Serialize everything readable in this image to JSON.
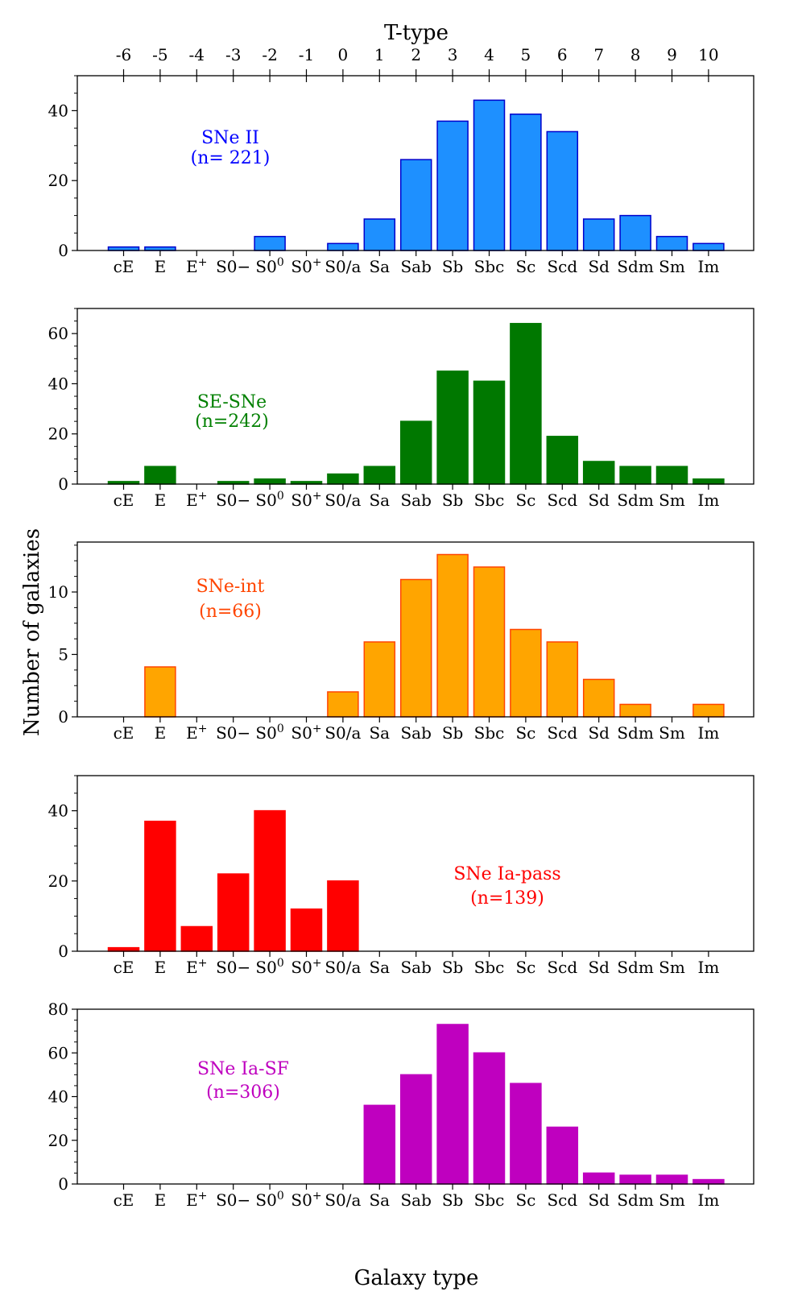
{
  "figure": {
    "top_axis_label": "T-type",
    "bottom_axis_label": "Galaxy type",
    "y_axis_label": "Number of galaxies"
  },
  "chart_data": [
    {
      "type": "bar",
      "title": "",
      "label_line1": "SNe II",
      "label_line2": "(n= 221)",
      "color": "#1e90ff",
      "edge_color": "#0000cc",
      "text_color": "#0000ff",
      "categories": [
        "cE",
        "E",
        "E+",
        "S0−",
        "S00",
        "S0+",
        "S0/a",
        "Sa",
        "Sab",
        "Sb",
        "Sbc",
        "Sc",
        "Scd",
        "Sd",
        "Sdm",
        "Sm",
        "Im"
      ],
      "values": [
        1,
        1,
        0,
        0,
        4,
        0,
        2,
        9,
        26,
        37,
        43,
        39,
        34,
        9,
        10,
        4,
        2
      ],
      "ylim": [
        0,
        50
      ],
      "yticks": [
        0,
        20,
        40
      ],
      "top_ticks": [
        "-6",
        "-5",
        "-4",
        "-3",
        "-2",
        "-1",
        "0",
        "1",
        "2",
        "3",
        "4",
        "5",
        "6",
        "7",
        "8",
        "9",
        "10"
      ],
      "grid": false
    },
    {
      "type": "bar",
      "title": "",
      "label_line1": "SE-SNe",
      "label_line2": "(n=242)",
      "color": "#007800",
      "edge_color": "#007800",
      "text_color": "#008000",
      "categories": [
        "cE",
        "E",
        "E+",
        "S0−",
        "S00",
        "S0+",
        "S0/a",
        "Sa",
        "Sab",
        "Sb",
        "Sbc",
        "Sc",
        "Scd",
        "Sd",
        "Sdm",
        "Sm",
        "Im"
      ],
      "values": [
        1,
        7,
        0,
        1,
        2,
        1,
        4,
        7,
        25,
        45,
        41,
        64,
        19,
        9,
        7,
        7,
        2
      ],
      "ylim": [
        0,
        70
      ],
      "yticks": [
        0,
        20,
        40,
        60
      ],
      "grid": false
    },
    {
      "type": "bar",
      "title": "",
      "label_line1": "SNe-int",
      "label_line2": "(n=66)",
      "color": "#ffa500",
      "edge_color": "#ff4500",
      "text_color": "#ff4500",
      "categories": [
        "cE",
        "E",
        "E+",
        "S0−",
        "S00",
        "S0+",
        "S0/a",
        "Sa",
        "Sab",
        "Sb",
        "Sbc",
        "Sc",
        "Scd",
        "Sd",
        "Sdm",
        "Sm",
        "Im"
      ],
      "values": [
        0,
        4,
        0,
        0,
        0,
        0,
        2,
        6,
        11,
        13,
        12,
        7,
        6,
        3,
        1,
        0,
        1
      ],
      "ylim": [
        0,
        14
      ],
      "yticks": [
        0,
        5,
        10
      ],
      "grid": false
    },
    {
      "type": "bar",
      "title": "",
      "label_line1": "SNe Ia-pass",
      "label_line2": "(n=139)",
      "color": "#ff0000",
      "edge_color": "#ff0000",
      "text_color": "#ff0000",
      "categories": [
        "cE",
        "E",
        "E+",
        "S0−",
        "S00",
        "S0+",
        "S0/a",
        "Sa",
        "Sab",
        "Sb",
        "Sbc",
        "Sc",
        "Scd",
        "Sd",
        "Sdm",
        "Sm",
        "Im"
      ],
      "values": [
        1,
        37,
        7,
        22,
        40,
        12,
        20,
        0,
        0,
        0,
        0,
        0,
        0,
        0,
        0,
        0,
        0
      ],
      "ylim": [
        0,
        50
      ],
      "yticks": [
        0,
        20,
        40
      ],
      "grid": false
    },
    {
      "type": "bar",
      "title": "",
      "label_line1": "SNe Ia-SF",
      "label_line2": "(n=306)",
      "color": "#bf00bf",
      "edge_color": "#bf00bf",
      "text_color": "#bf00bf",
      "categories": [
        "cE",
        "E",
        "E+",
        "S0−",
        "S00",
        "S0+",
        "S0/a",
        "Sa",
        "Sab",
        "Sb",
        "Sbc",
        "Sc",
        "Scd",
        "Sd",
        "Sdm",
        "Sm",
        "Im"
      ],
      "values": [
        0,
        0,
        0,
        0,
        0,
        0,
        0,
        36,
        50,
        73,
        60,
        46,
        26,
        5,
        4,
        4,
        2
      ],
      "ylim": [
        0,
        80
      ],
      "yticks": [
        0,
        20,
        40,
        60,
        80
      ],
      "grid": false
    }
  ]
}
